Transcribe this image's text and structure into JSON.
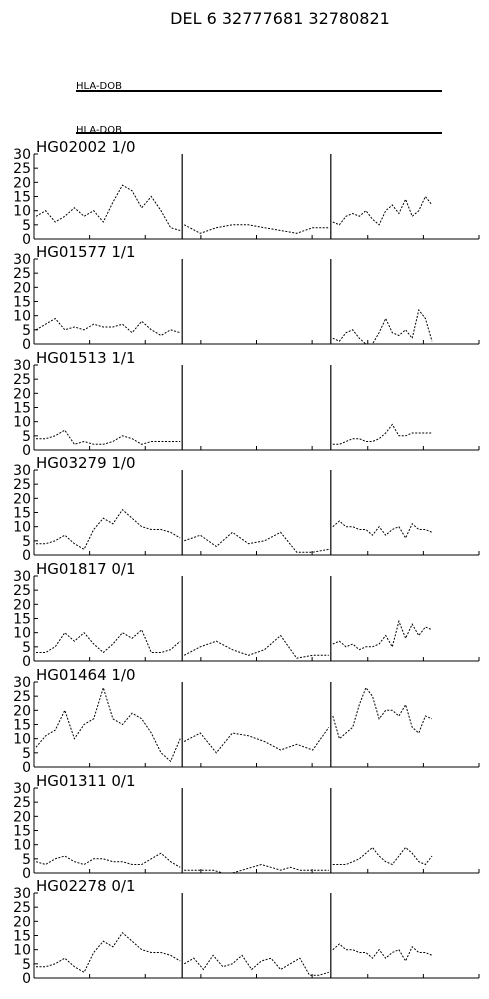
{
  "chart_data": {
    "type": "line",
    "title": "DEL 6 32777681 32780821",
    "gene_tracks": [
      "HLA-DOB",
      "HLA-DOB"
    ],
    "ylim": [
      0,
      30
    ],
    "yticks": [
      "0",
      "5",
      "10",
      "15",
      "20",
      "25",
      "30"
    ],
    "xlim": [
      0,
      100
    ],
    "region_boundaries": [
      33.3,
      66.7
    ],
    "series": [
      {
        "name": "HG02002 1/0",
        "x": [
          0,
          4,
          8,
          12,
          16,
          20,
          24,
          28,
          32,
          36,
          40,
          44,
          48,
          52,
          56,
          60,
          64,
          68,
          72,
          76,
          80,
          84,
          88,
          92,
          96,
          100
        ],
        "values": [
          8,
          10,
          6,
          8,
          11,
          8,
          10,
          6,
          13,
          19,
          17,
          11,
          15,
          10,
          4,
          3,
          5,
          2,
          4,
          5,
          5,
          4,
          3,
          2,
          4,
          4
        ]
      },
      {
        "name": "HG01577 1/1",
        "x": [
          0,
          4,
          8,
          12,
          16,
          20,
          24,
          28,
          32,
          36,
          40,
          44,
          48,
          52,
          56,
          60,
          64,
          68,
          72,
          76,
          80,
          84,
          88,
          92,
          96,
          100
        ],
        "values": [
          5,
          7,
          9,
          5,
          6,
          5,
          7,
          6,
          6,
          7,
          4,
          8,
          5,
          3,
          5,
          4,
          0,
          0,
          0,
          0,
          0,
          0,
          0,
          0,
          0,
          0
        ]
      },
      {
        "name": "HG01513 1/1",
        "x": [
          0,
          4,
          8,
          12,
          16,
          20,
          24,
          28,
          32,
          36,
          40,
          44,
          48,
          52,
          56,
          60,
          64,
          68,
          72,
          76,
          80,
          84,
          88,
          92,
          96,
          100
        ],
        "values": [
          4,
          4,
          5,
          7,
          2,
          3,
          2,
          2,
          3,
          5,
          4,
          2,
          3,
          3,
          3,
          3,
          0,
          0,
          0,
          0,
          0,
          0,
          0,
          0,
          0,
          0
        ]
      },
      {
        "name": "HG03279 1/0",
        "x": [
          0,
          4,
          8,
          12,
          16,
          20,
          24,
          28,
          32,
          36,
          40,
          44,
          48,
          52,
          56,
          60,
          64,
          68,
          72,
          76,
          80,
          84,
          88,
          92,
          96,
          100
        ],
        "values": [
          4,
          4,
          5,
          7,
          4,
          2,
          9,
          13,
          11,
          16,
          13,
          10,
          9,
          9,
          8,
          6,
          5,
          7,
          3,
          8,
          4,
          5,
          8,
          1,
          1,
          2
        ]
      },
      {
        "name": "HG01817 0/1",
        "x": [
          0,
          4,
          8,
          12,
          16,
          20,
          24,
          28,
          32,
          36,
          40,
          44,
          48,
          52,
          56,
          60,
          64,
          68,
          72,
          76,
          80,
          84,
          88,
          92,
          96,
          100
        ],
        "values": [
          3,
          3,
          5,
          10,
          7,
          10,
          6,
          3,
          6,
          10,
          8,
          11,
          3,
          3,
          4,
          7,
          2,
          5,
          7,
          4,
          2,
          4,
          9,
          1,
          2,
          2
        ]
      },
      {
        "name": "HG01464 1/0",
        "x": [
          0,
          4,
          8,
          12,
          16,
          20,
          24,
          28,
          32,
          36,
          40,
          44,
          48,
          52,
          56,
          60,
          64,
          68,
          72,
          76,
          80,
          84,
          88,
          92,
          96,
          100
        ],
        "values": [
          7,
          11,
          13,
          20,
          10,
          15,
          17,
          28,
          17,
          15,
          19,
          17,
          12,
          5,
          2,
          10,
          9,
          12,
          5,
          12,
          11,
          9,
          6,
          8,
          6,
          14
        ]
      }
    ],
    "right_series": [
      {
        "values": [
          6,
          5,
          8,
          9,
          8,
          10,
          7,
          5,
          10,
          12,
          9,
          14,
          8,
          10,
          15,
          12
        ]
      },
      {
        "values": [
          2,
          1,
          4,
          5,
          2,
          0,
          0,
          4,
          9,
          4,
          3,
          5,
          2,
          12,
          9,
          1
        ]
      },
      {
        "values": [
          2,
          2,
          3,
          4,
          4,
          3,
          3,
          4,
          6,
          9,
          5,
          5,
          6,
          6,
          6,
          6
        ]
      },
      {
        "values": [
          10,
          12,
          10,
          10,
          9,
          9,
          7,
          10,
          7,
          9,
          10,
          6,
          11,
          9,
          9,
          8
        ]
      },
      {
        "values": [
          6,
          7,
          5,
          6,
          4,
          5,
          5,
          6,
          9,
          5,
          14,
          8,
          13,
          9,
          12,
          11
        ]
      },
      {
        "values": [
          18,
          10,
          12,
          14,
          22,
          28,
          25,
          17,
          20,
          20,
          18,
          22,
          14,
          12,
          18,
          17
        ]
      }
    ]
  },
  "extra_panels": [
    {
      "name": "HG01311 0/1",
      "left": [
        4,
        3,
        5,
        6,
        4,
        3,
        5,
        5,
        4,
        4,
        3,
        3,
        5,
        7,
        4,
        2
      ],
      "mid": [
        1,
        1,
        1,
        1,
        0,
        0,
        1,
        2,
        3,
        2,
        1,
        2,
        1,
        1,
        1,
        1
      ],
      "right": [
        3,
        3,
        3,
        4,
        5,
        7,
        9,
        6,
        4,
        3,
        6,
        9,
        7,
        4,
        3,
        6
      ]
    },
    {
      "name": "HG02278 0/1",
      "left": [
        4,
        4,
        5,
        7,
        4,
        2,
        9,
        13,
        11,
        16,
        13,
        10,
        9,
        9,
        8,
        6
      ],
      "mid": [
        5,
        7,
        3,
        8,
        4,
        5,
        8,
        3,
        6,
        7,
        3,
        5,
        7,
        1,
        1,
        2
      ],
      "right": [
        10,
        12,
        10,
        10,
        9,
        9,
        7,
        10,
        7,
        9,
        10,
        6,
        11,
        9,
        9,
        8
      ]
    }
  ]
}
